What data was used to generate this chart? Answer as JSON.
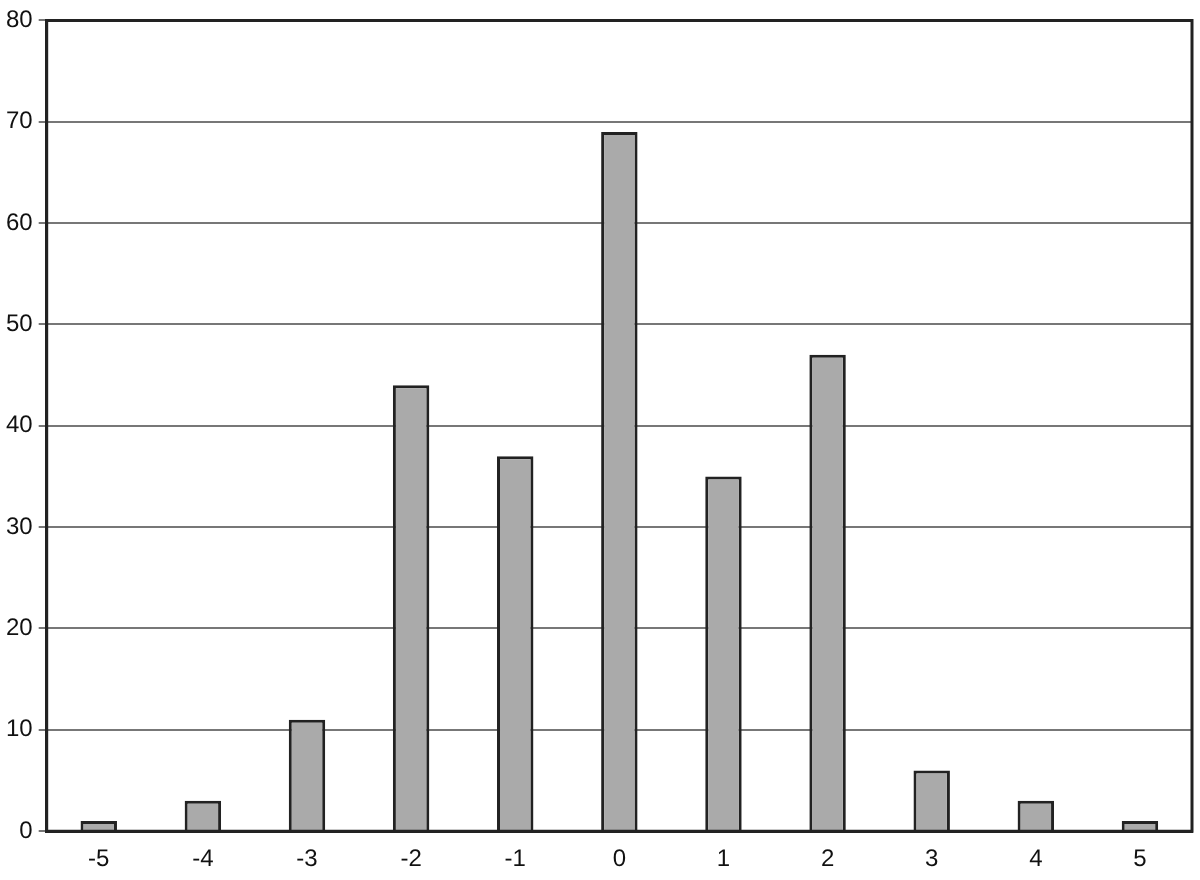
{
  "chart_data": {
    "type": "bar",
    "categories": [
      "-5",
      "-4",
      "-3",
      "-2",
      "-1",
      "0",
      "1",
      "2",
      "3",
      "4",
      "5"
    ],
    "values": [
      1,
      3,
      11,
      44,
      37,
      69,
      35,
      47,
      6,
      3,
      1
    ],
    "color": "#aaaaaa",
    "ylim": [
      0,
      80
    ],
    "yticks": [
      0,
      10,
      20,
      30,
      40,
      50,
      60,
      70,
      80
    ],
    "grid": "y"
  }
}
